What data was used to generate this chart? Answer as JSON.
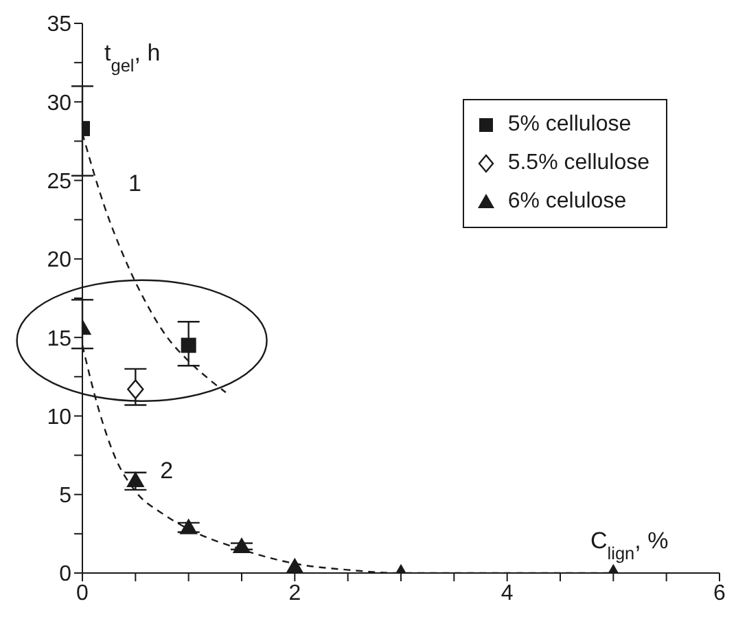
{
  "chart_data": {
    "type": "scatter",
    "xlabel": "C$_{lign}$, %",
    "ylabel": "t$_{gel}$, h",
    "xlim": [
      0,
      6
    ],
    "ylim": [
      0,
      35
    ],
    "xticks": [
      0,
      {
        "value": 0.5,
        "label": null
      },
      {
        "value": 1,
        "label": null
      },
      {
        "value": 1.5,
        "label": null
      },
      2,
      {
        "value": 2.5,
        "label": null
      },
      {
        "value": 3,
        "label": null
      },
      {
        "value": 3.5,
        "label": null
      },
      4,
      {
        "value": 4.5,
        "label": null
      },
      {
        "value": 5,
        "label": null
      },
      {
        "value": 5.5,
        "label": null
      },
      6
    ],
    "yticks": [
      0,
      {
        "value": 2.5,
        "label": null
      },
      5,
      {
        "value": 7.5,
        "label": null
      },
      10,
      {
        "value": 12.5,
        "label": null
      },
      15,
      {
        "value": 17.5,
        "label": null
      },
      20,
      {
        "value": 22.5,
        "label": null
      },
      25,
      {
        "value": 27.5,
        "label": null
      },
      30,
      {
        "value": 32.5,
        "label": null
      },
      35
    ],
    "series": [
      {
        "name": "5% cellulose",
        "marker": "square",
        "color": "#1a1a1a",
        "x": [
          0,
          1
        ],
        "values": [
          28.3,
          14.5
        ],
        "errors": [
          [
            25.3,
            31.0
          ],
          [
            13.2,
            16.0
          ]
        ]
      },
      {
        "name": "5.5% cellulose",
        "marker": "diamond",
        "color": "#1a1a1a",
        "x": [
          0.5
        ],
        "values": [
          11.7
        ],
        "errors": [
          [
            10.7,
            13.0
          ]
        ]
      },
      {
        "name": "6% celulose",
        "marker": "triangle",
        "color": "#1a1a1a",
        "x": [
          0,
          0.5,
          1,
          1.5,
          2,
          3,
          5
        ],
        "values": [
          15.6,
          5.9,
          2.9,
          1.7,
          0.4,
          0,
          0
        ],
        "errors": [
          [
            14.3,
            17.4
          ],
          [
            5.3,
            6.4
          ],
          [
            2.6,
            3.2
          ],
          [
            1.5,
            1.9
          ],
          null,
          null,
          null
        ]
      },
      {
        "type": "line",
        "line_style": "dashed",
        "marker": "none",
        "color": "#1a1a1a",
        "x": [
          0,
          0.2,
          0.4,
          0.6,
          0.8,
          1,
          1.2,
          1.35
        ],
        "values": [
          28,
          23.5,
          20,
          17.2,
          15,
          13.5,
          12.3,
          11.5
        ]
      },
      {
        "type": "line",
        "line_style": "dashed",
        "marker": "none",
        "color": "#1a1a1a",
        "x": [
          0,
          0.15,
          0.3,
          0.5,
          0.75,
          1,
          1.5,
          2,
          2.5,
          3,
          5
        ],
        "values": [
          14.5,
          10.5,
          7.5,
          5.2,
          3.8,
          2.8,
          1.5,
          0.6,
          0.2,
          0,
          0
        ]
      }
    ],
    "annotations": [
      {
        "text": "1",
        "x": 0.2,
        "y": 23.5
      },
      {
        "text": "2",
        "x": 0.5,
        "y": 5.2
      }
    ],
    "legend": "top right"
  }
}
